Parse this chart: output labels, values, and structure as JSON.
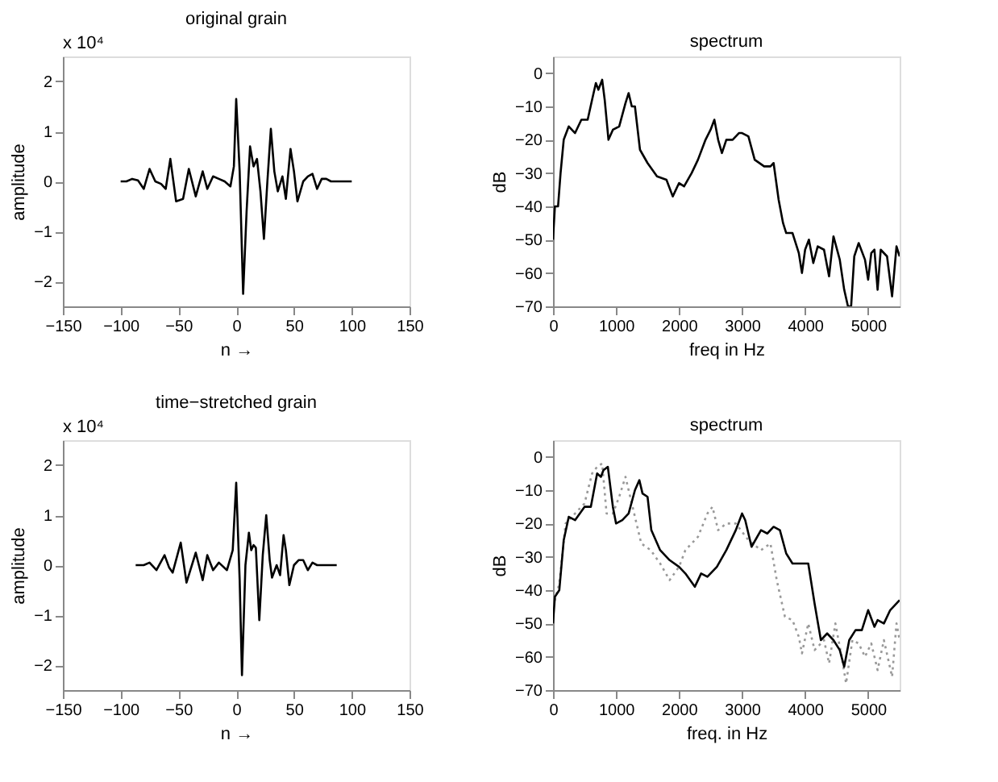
{
  "chart_data": [
    {
      "type": "line",
      "title": "original grain",
      "xlabel": "n →",
      "ylabel": "amplitude",
      "annotations": [
        "x 10⁴"
      ],
      "xlim": [
        -150,
        150
      ],
      "xticks": [
        -150,
        -100,
        -50,
        0,
        50,
        100,
        150
      ],
      "ylim": [
        -2.5,
        2.5
      ],
      "yticks": [
        -2,
        -1,
        0,
        1,
        2
      ],
      "series": [
        {
          "color": "#000000",
          "line_style": "solid",
          "x": [
            -100,
            -95,
            -90,
            -85,
            -80,
            -75,
            -70,
            -65,
            -61,
            -57,
            -52,
            -46,
            -41,
            -35,
            -29,
            -25,
            -20,
            -15,
            -10,
            -5,
            -2,
            0,
            3,
            6,
            9,
            12,
            15,
            18,
            21,
            24,
            27,
            30,
            33,
            36,
            40,
            43,
            47,
            50,
            53,
            58,
            62,
            66,
            70,
            74,
            78,
            82,
            90,
            100
          ],
          "values": [
            0,
            0,
            0.05,
            0.02,
            -0.15,
            0.25,
            0,
            -0.05,
            -0.15,
            0.45,
            -0.4,
            -0.35,
            0.25,
            -0.3,
            0.2,
            -0.15,
            0.1,
            0.05,
            0,
            -0.1,
            0.3,
            1.65,
            0.2,
            -2.25,
            -0.6,
            0.7,
            0.3,
            0.45,
            -0.2,
            -1.15,
            0,
            1.05,
            0.2,
            -0.2,
            0.1,
            -0.35,
            0.65,
            0.2,
            -0.4,
            0,
            0.1,
            0.15,
            -0.15,
            0.05,
            0.05,
            0,
            0,
            0
          ]
        }
      ]
    },
    {
      "type": "line",
      "title": "spectrum",
      "xlabel": "freq in Hz",
      "ylabel": "dB",
      "xlim": [
        0,
        5500
      ],
      "xticks": [
        0,
        1000,
        2000,
        3000,
        4000,
        5000
      ],
      "ylim": [
        -70,
        5
      ],
      "yticks": [
        -70,
        -60,
        -50,
        -40,
        -30,
        -20,
        -10,
        0
      ],
      "series": [
        {
          "color": "#000000",
          "line_style": "solid",
          "x": [
            0,
            30,
            80,
            120,
            170,
            250,
            350,
            450,
            550,
            620,
            680,
            720,
            780,
            820,
            880,
            950,
            1050,
            1150,
            1200,
            1250,
            1300,
            1380,
            1500,
            1650,
            1800,
            1900,
            2000,
            2080,
            2200,
            2300,
            2420,
            2500,
            2560,
            2620,
            2680,
            2750,
            2850,
            2950,
            3000,
            3100,
            3200,
            3350,
            3450,
            3500,
            3580,
            3650,
            3700,
            3800,
            3900,
            3950,
            4000,
            4060,
            4130,
            4200,
            4300,
            4380,
            4450,
            4550,
            4620,
            4680,
            4730,
            4780,
            4850,
            4950,
            5000,
            5050,
            5100,
            5150,
            5200,
            5300,
            5380,
            5450,
            5500
          ],
          "values": [
            -50,
            -40,
            -40,
            -30,
            -20,
            -16,
            -18,
            -14,
            -14,
            -8,
            -3,
            -5,
            -2,
            -8,
            -20,
            -17,
            -16,
            -9,
            -6,
            -10,
            -10,
            -23,
            -27,
            -31,
            -32,
            -37,
            -33,
            -34,
            -30,
            -26,
            -20,
            -17,
            -14,
            -20,
            -24,
            -20,
            -20,
            -18,
            -18,
            -19,
            -26,
            -28,
            -28,
            -27,
            -38,
            -45,
            -48,
            -48,
            -54,
            -60,
            -53,
            -50,
            -57,
            -52,
            -53,
            -61,
            -49,
            -56,
            -65,
            -70,
            -70,
            -55,
            -51,
            -56,
            -62,
            -54,
            -53,
            -65,
            -53,
            -55,
            -67,
            -52,
            -55
          ]
        }
      ]
    },
    {
      "type": "line",
      "title": "time−stretched grain",
      "xlabel": "n →",
      "ylabel": "amplitude",
      "annotations": [
        "x 10⁴"
      ],
      "xlim": [
        -150,
        150
      ],
      "xticks": [
        -150,
        -100,
        -50,
        0,
        50,
        100,
        150
      ],
      "ylim": [
        -2.5,
        2.5
      ],
      "yticks": [
        -2,
        -1,
        0,
        1,
        2
      ],
      "series": [
        {
          "color": "#000000",
          "line_style": "solid",
          "x": [
            -87,
            -80,
            -75,
            -69,
            -62,
            -58,
            -55,
            -48,
            -43,
            -35,
            -29,
            -25,
            -20,
            -15,
            -8,
            -3,
            0,
            3,
            5,
            8,
            11,
            13,
            15,
            17,
            20,
            23,
            26,
            29,
            31,
            35,
            38,
            41,
            43,
            46,
            50,
            54,
            58,
            62,
            66,
            70,
            75,
            80,
            87
          ],
          "values": [
            0,
            0,
            0.05,
            -0.1,
            0.2,
            -0.05,
            -0.15,
            0.45,
            -0.35,
            0.25,
            -0.3,
            0.2,
            -0.1,
            0.05,
            -0.1,
            0.3,
            1.65,
            -0.3,
            -2.2,
            0,
            0.65,
            0.3,
            0.4,
            0.35,
            -1.1,
            0.2,
            1.0,
            0.1,
            -0.25,
            0,
            -0.2,
            0.6,
            0.3,
            -0.4,
            0,
            0.1,
            0.1,
            -0.1,
            0.05,
            0,
            0,
            0,
            0
          ]
        }
      ]
    },
    {
      "type": "line",
      "title": "spectrum",
      "xlabel": "freq. in Hz",
      "ylabel": "dB",
      "xlim": [
        0,
        5500
      ],
      "xticks": [
        0,
        1000,
        2000,
        3000,
        4000,
        5000
      ],
      "ylim": [
        -70,
        5
      ],
      "yticks": [
        -70,
        -60,
        -50,
        -40,
        -30,
        -20,
        -10,
        0
      ],
      "series": [
        {
          "color": "#999999",
          "line_style": "dotted",
          "x": [
            0,
            100,
            200,
            350,
            500,
            620,
            700,
            780,
            850,
            950,
            1050,
            1150,
            1250,
            1400,
            1550,
            1700,
            1850,
            2000,
            2100,
            2300,
            2450,
            2530,
            2620,
            2750,
            2900,
            3100,
            3300,
            3450,
            3550,
            3680,
            3800,
            3900,
            3950,
            4050,
            4150,
            4300,
            4380,
            4480,
            4580,
            4650,
            4750,
            4850,
            4950,
            5050,
            5150,
            5250,
            5380,
            5450,
            5500
          ],
          "values": [
            -45,
            -38,
            -20,
            -17,
            -14,
            -5,
            -3,
            -2,
            -17,
            -17,
            -12,
            -6,
            -14,
            -26,
            -28,
            -32,
            -37,
            -33,
            -28,
            -24,
            -17,
            -15,
            -22,
            -20,
            -20,
            -25,
            -28,
            -26,
            -37,
            -48,
            -49,
            -54,
            -59,
            -50,
            -58,
            -55,
            -62,
            -50,
            -60,
            -68,
            -55,
            -56,
            -60,
            -56,
            -64,
            -55,
            -66,
            -50,
            -55
          ]
        },
        {
          "color": "#000000",
          "line_style": "solid",
          "x": [
            0,
            30,
            100,
            170,
            250,
            350,
            500,
            600,
            700,
            760,
            800,
            870,
            950,
            1000,
            1100,
            1200,
            1300,
            1370,
            1420,
            1500,
            1560,
            1700,
            1850,
            2000,
            2100,
            2250,
            2350,
            2450,
            2600,
            2750,
            2900,
            3000,
            3050,
            3150,
            3300,
            3400,
            3500,
            3600,
            3700,
            3800,
            3950,
            4050,
            4150,
            4250,
            4350,
            4450,
            4550,
            4620,
            4700,
            4800,
            4900,
            5000,
            5100,
            5150,
            5250,
            5350,
            5500
          ],
          "values": [
            -50,
            -42,
            -40,
            -25,
            -18,
            -19,
            -15,
            -15,
            -5,
            -6,
            -4,
            -3,
            -15,
            -20,
            -19,
            -17,
            -10,
            -7,
            -11,
            -12,
            -22,
            -28,
            -31,
            -33,
            -35,
            -39,
            -35,
            -36,
            -33,
            -28,
            -22,
            -17,
            -19,
            -27,
            -22,
            -23,
            -21,
            -22,
            -29,
            -32,
            -32,
            -32,
            -44,
            -55,
            -53,
            -55,
            -58,
            -63,
            -55,
            -52,
            -52,
            -46,
            -51,
            -49,
            -50,
            -46,
            -43
          ]
        }
      ]
    }
  ]
}
